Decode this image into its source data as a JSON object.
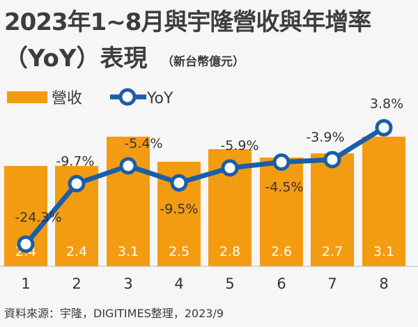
{
  "header": {
    "title_line1": "2023年1~8月與宇隆營收與年增率",
    "title_line2": "（YoY）表現",
    "unit": "（新台幣億元）"
  },
  "source": "資料來源：宇隆，DIGITIMES整理，2023/9",
  "colors": {
    "bar": "#f39c12",
    "line": "#1a5ea8",
    "marker_fill": "#ffffff",
    "background": "#f6f6f6"
  },
  "chart_data": {
    "type": "bar",
    "categories": [
      "1",
      "2",
      "3",
      "4",
      "5",
      "6",
      "7",
      "8"
    ],
    "series": [
      {
        "name": "營收",
        "type": "bar",
        "values": [
          2.4,
          2.4,
          3.1,
          2.5,
          2.8,
          2.6,
          2.7,
          3.1
        ]
      },
      {
        "name": "YoY",
        "type": "line",
        "values": [
          -24.3,
          -9.7,
          -5.4,
          -9.5,
          -5.9,
          -4.5,
          -3.9,
          3.8
        ],
        "labels": [
          "-24.3%",
          "-9.7%",
          "-5.4%",
          "-9.5%",
          "-5.9%",
          "-4.5%",
          "-3.9%",
          "3.8%"
        ]
      }
    ],
    "legend": {
      "position": "top-left",
      "entries": [
        "營收",
        "YoY"
      ]
    },
    "grid": false
  }
}
